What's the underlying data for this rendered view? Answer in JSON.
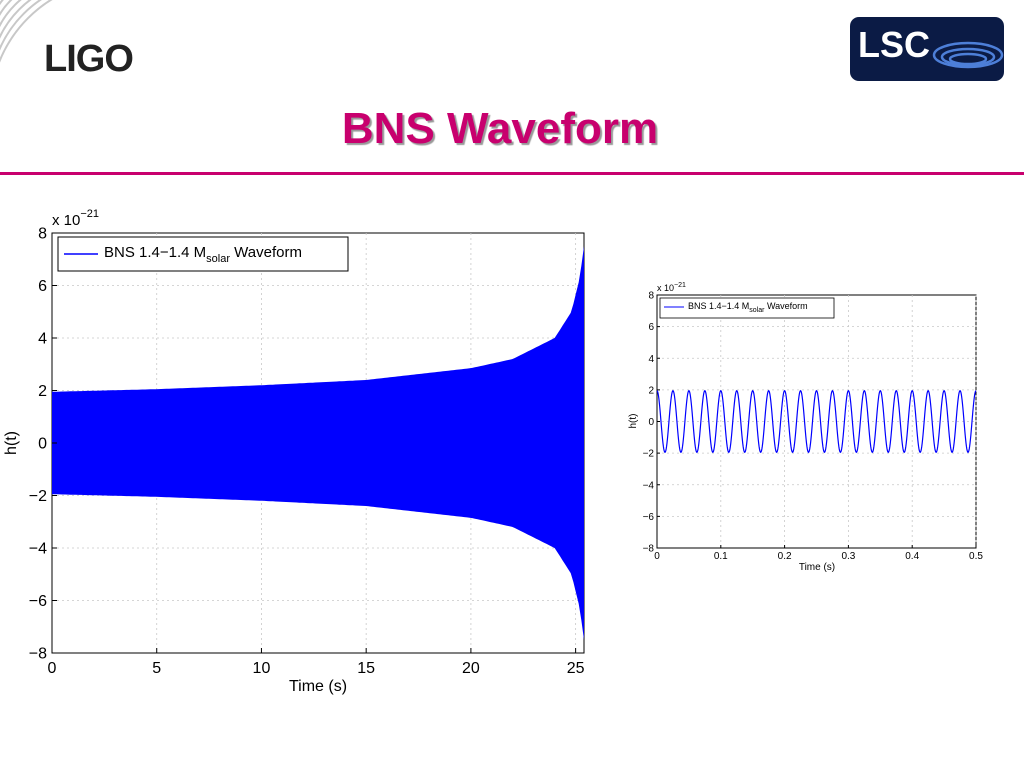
{
  "slide": {
    "title": "BNS Waveform",
    "ligo_logo_text": "LIGO",
    "lsc_logo_text": "LSC",
    "accent_color": "#c8006e"
  },
  "chart_data": [
    {
      "type": "line",
      "title": "",
      "xlabel": "Time (s)",
      "ylabel": "h(t)",
      "y_multiplier": "x 10",
      "y_multiplier_exponent": "−21",
      "xlim": [
        0,
        25.4
      ],
      "ylim": [
        -8,
        8
      ],
      "xticks": [
        0,
        5,
        10,
        15,
        20,
        25
      ],
      "yticks": [
        -8,
        -6,
        -4,
        -2,
        0,
        2,
        4,
        6,
        8
      ],
      "ytick_labels": [
        "−8",
        "−6",
        "−4",
        "−2",
        "0",
        "2",
        "4",
        "6",
        "8"
      ],
      "grid": true,
      "legend_position": "top-left",
      "series": [
        {
          "name": "BNS 1.4−1.4 M",
          "name_subscript": "solar",
          "name_suffix": " Waveform",
          "color": "#0000ff",
          "style": "filled-oscillation-envelope",
          "envelope_x": [
            0,
            5,
            10,
            15,
            20,
            22,
            24,
            24.8,
            25.2,
            25.4
          ],
          "envelope_y": [
            1.95,
            2.05,
            2.2,
            2.4,
            2.85,
            3.2,
            4.0,
            5.0,
            6.3,
            7.5
          ]
        }
      ]
    },
    {
      "type": "line",
      "title": "",
      "xlabel": "Time (s)",
      "ylabel": "h(t)",
      "y_multiplier": "x 10",
      "y_multiplier_exponent": "−21",
      "xlim": [
        0,
        0.5
      ],
      "ylim": [
        -8,
        8
      ],
      "xticks": [
        0,
        0.1,
        0.2,
        0.3,
        0.4,
        0.5
      ],
      "yticks": [
        -8,
        -6,
        -4,
        -2,
        0,
        2,
        4,
        6,
        8
      ],
      "ytick_labels": [
        "−8",
        "−6",
        "−4",
        "−2",
        "0",
        "2",
        "4",
        "6",
        "8"
      ],
      "grid": true,
      "legend_position": "top-left",
      "series": [
        {
          "name": "BNS 1.4−1.4 M",
          "name_subscript": "solar",
          "name_suffix": " Waveform",
          "color": "#0000ff",
          "style": "sinusoid",
          "amplitude": 1.95,
          "frequency_hz": 40,
          "phase_deg": 90
        }
      ]
    }
  ]
}
